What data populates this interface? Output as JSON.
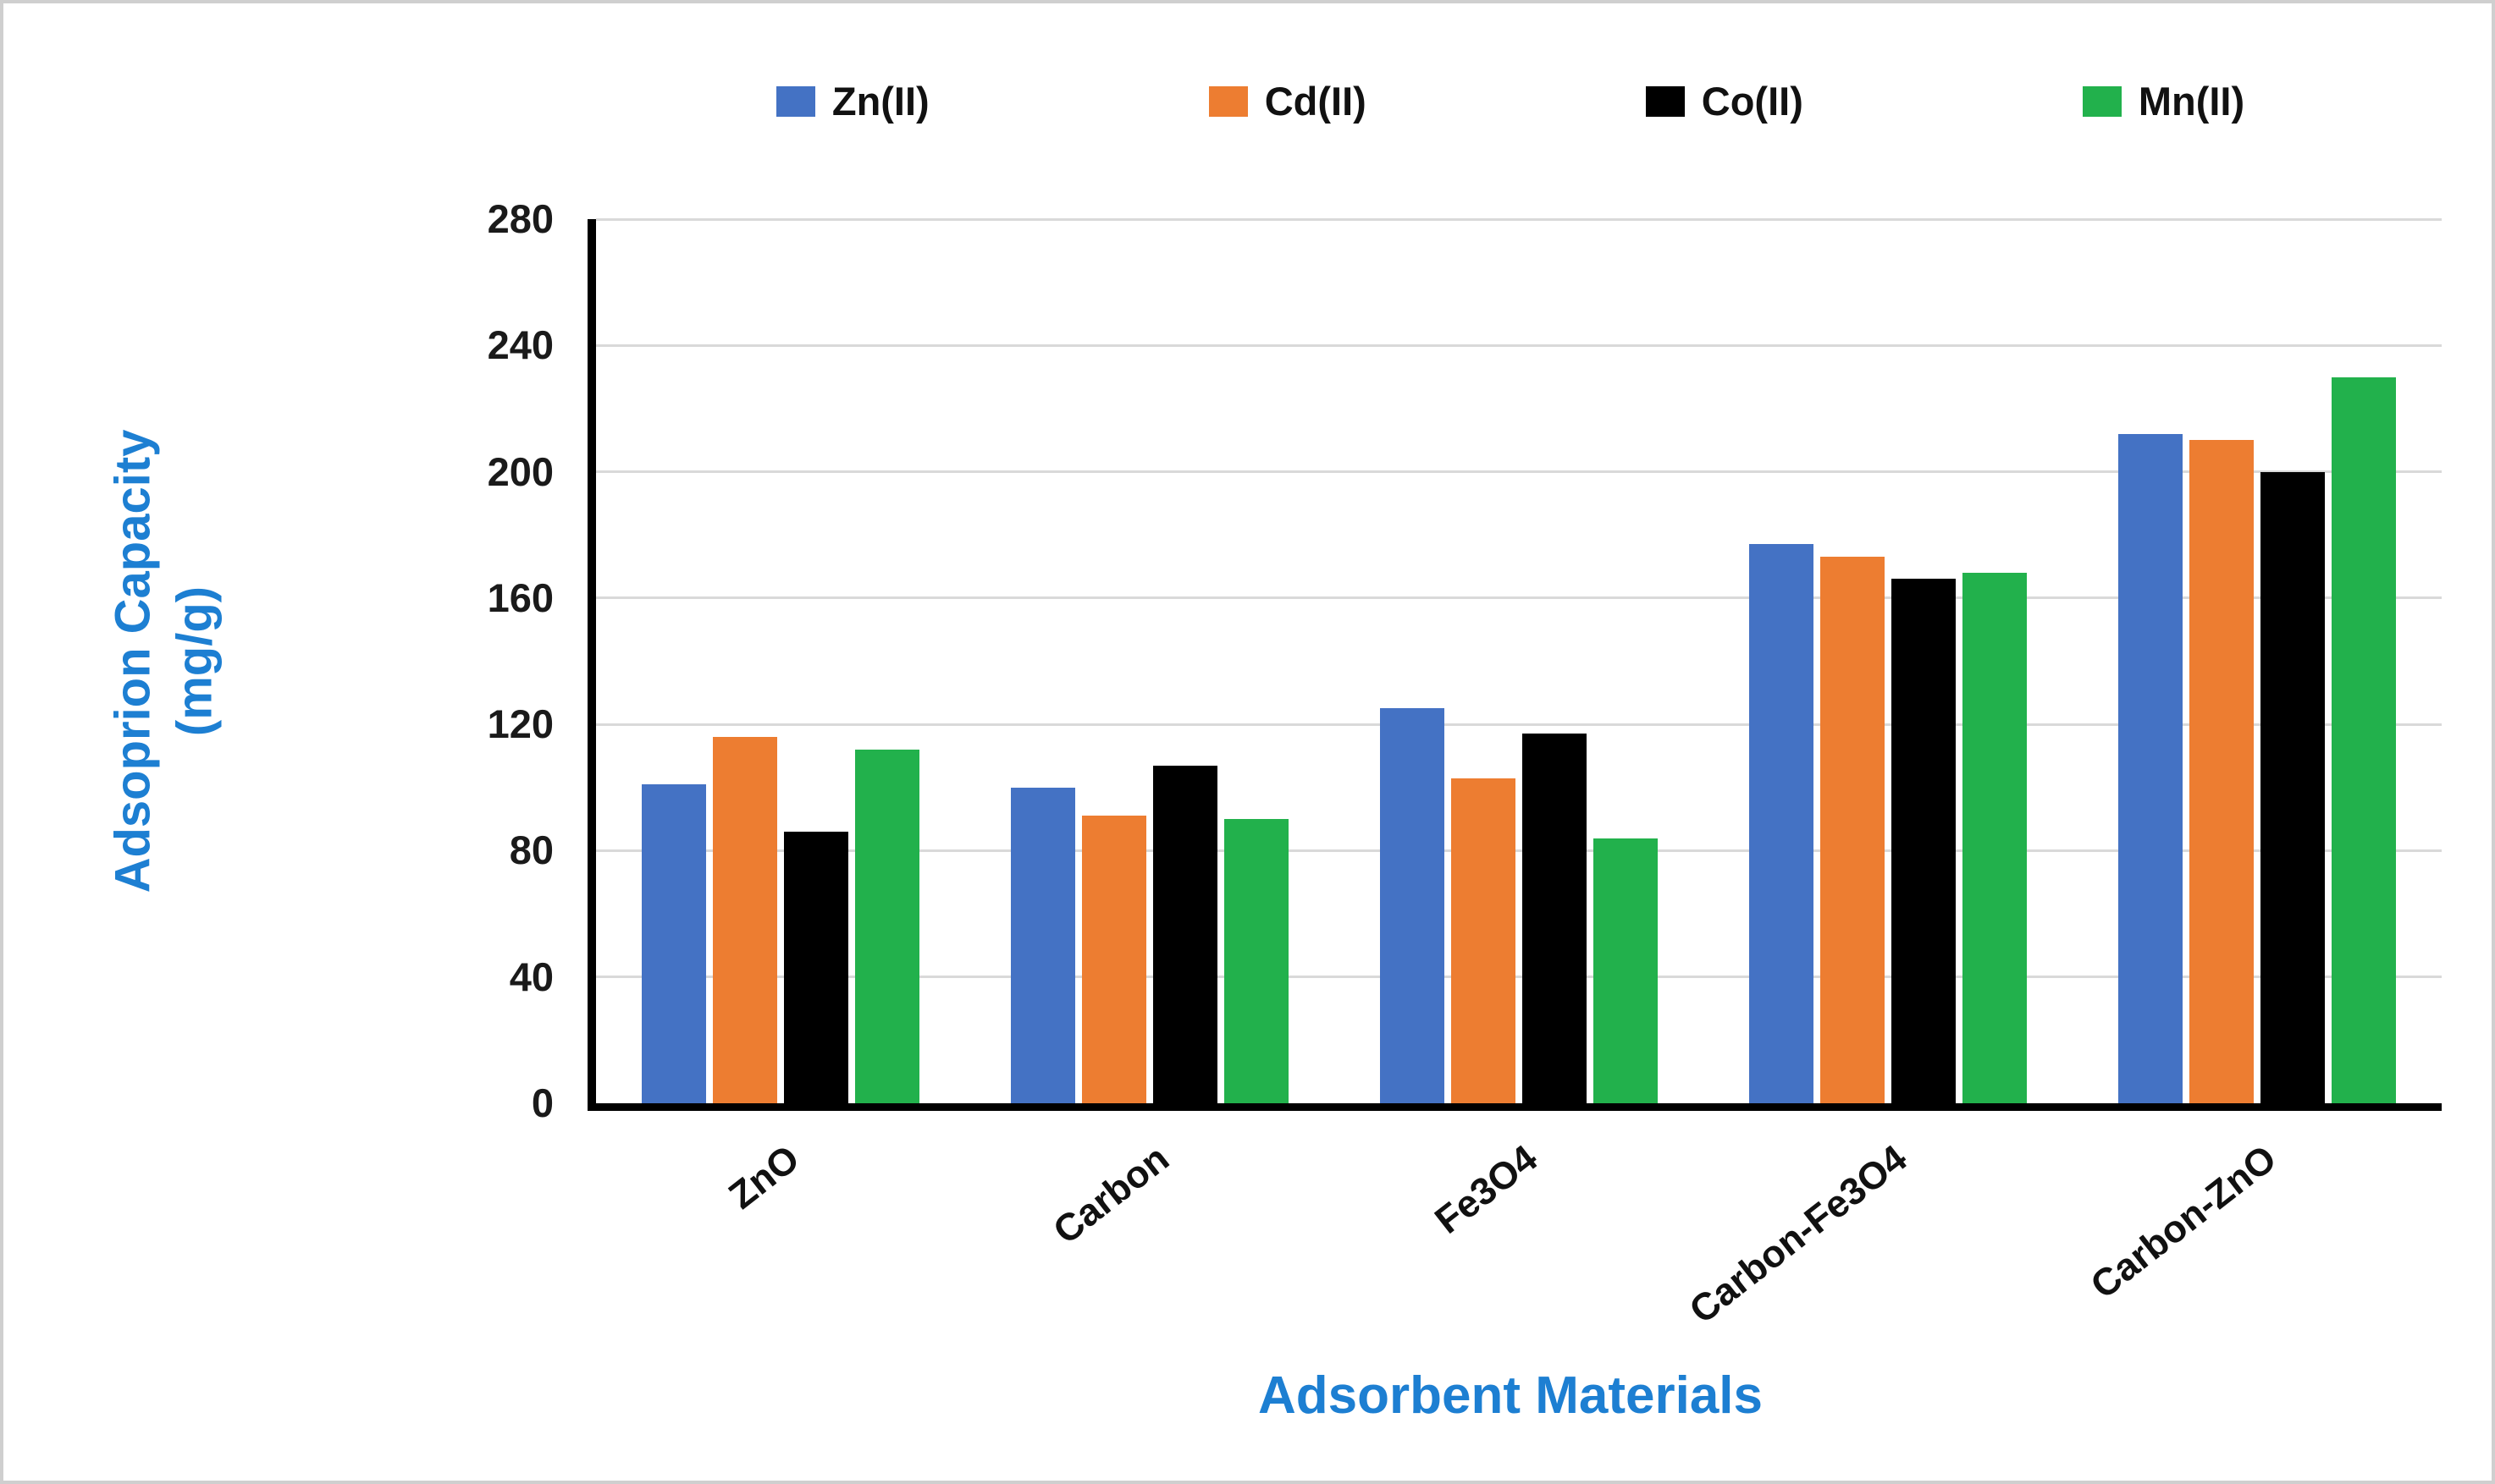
{
  "colors": {
    "title": "#1d7fd2",
    "tick": "#1a1a1a",
    "axis": "#000000",
    "grid": "#d9d9d9",
    "page_border": "#cfcfcf"
  },
  "chart_data": {
    "type": "bar",
    "title": "",
    "categories": [
      "ZnO",
      "Carbon",
      "Fe3O4",
      "Carbon-Fe3O4",
      "Carbon-ZnO"
    ],
    "series": [
      {
        "name": "Zn(II)",
        "color": "#4472C4",
        "values": [
          101,
          100,
          125,
          177,
          212
        ]
      },
      {
        "name": "Cd(II)",
        "color": "#ED7D31",
        "values": [
          116,
          91,
          103,
          173,
          210
        ]
      },
      {
        "name": "Co(II)",
        "color": "#000000",
        "values": [
          86,
          107,
          117,
          166,
          200
        ]
      },
      {
        "name": "Mn(II)",
        "color": "#22B14C",
        "values": [
          112,
          90,
          84,
          168,
          230
        ]
      }
    ],
    "ylabel_line1": "Adsoprion Capacity",
    "ylabel_line2": "(mg/g)",
    "xlabel": "Adsorbent Materials",
    "ylim": [
      0,
      280
    ],
    "ytick_step": 40,
    "yticks": [
      0,
      40,
      80,
      120,
      160,
      200,
      240,
      280
    ],
    "grid": true,
    "legend_position": "top"
  }
}
